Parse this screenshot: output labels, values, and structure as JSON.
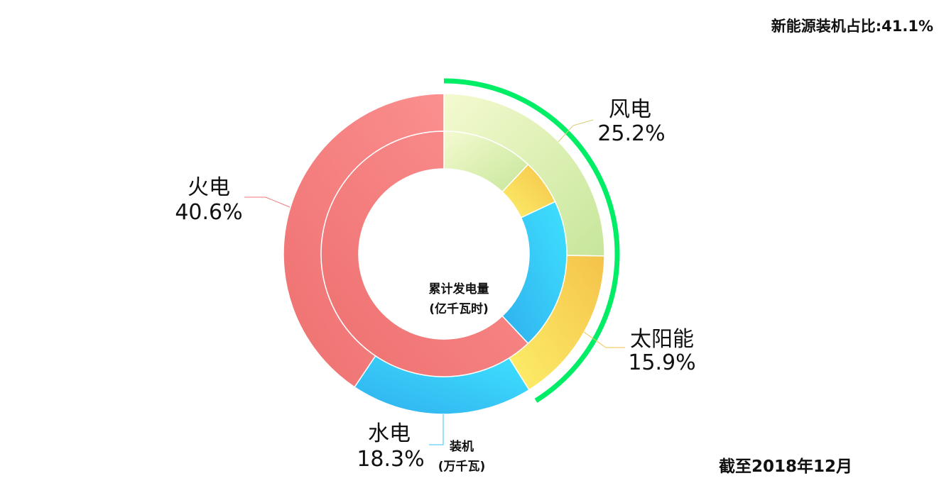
{
  "header": {
    "new_energy_ratio": "新能源装机占比:41.1%"
  },
  "footer": {
    "date_note": "截至2018年12月"
  },
  "center_label": {
    "line1": "累计发电量",
    "line2": "(亿千瓦时)"
  },
  "outer_label": {
    "line1": "装机",
    "line2": "(万千瓦)"
  },
  "colors": {
    "thermal": "#f47a7a",
    "wind": "#d9ecac",
    "solar": "#fbd957",
    "hydro": "#35c6f3",
    "new_energy_arc": "#00ee66"
  },
  "chart_data": {
    "type": "pie",
    "variant": "nested-donut",
    "categories": [
      "风电",
      "太阳能",
      "水电",
      "火电"
    ],
    "series": [
      {
        "ring": "outer",
        "values": [
          25.2,
          15.9,
          18.3,
          40.6
        ],
        "labels": [
          "25.2%",
          "15.9%",
          "18.3%",
          "40.6%"
        ]
      },
      {
        "ring": "inner",
        "values": [
          12.0,
          6.0,
          20.0,
          62.0
        ]
      }
    ]
  }
}
